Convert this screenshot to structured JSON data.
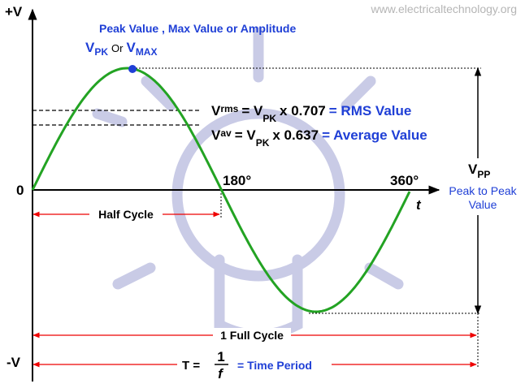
{
  "watermark": "www.electricaltechnology.org",
  "axis": {
    "y_top": "+V",
    "y_bottom": "-V",
    "origin": "0",
    "x": "t"
  },
  "peak": {
    "title": "Peak Value , Max Value or Amplitude",
    "v1": "V",
    "sub1": "PK",
    "or": "Or",
    "v2": "V",
    "sub2": "MAX"
  },
  "rms": {
    "v": "V",
    "sub": "rms",
    "eq": "= V",
    "sub2": "PK",
    "coef": "x 0.707",
    "label": "= RMS Value"
  },
  "average": {
    "v": "V",
    "sub": "av",
    "eq": "= V",
    "sub2": "PK",
    "coef": "x 0.637",
    "label": "= Average Value"
  },
  "degrees": {
    "half": "180°",
    "full": "360°"
  },
  "peak_to_peak": {
    "v": "V",
    "sub": "PP",
    "line1": "Peak to Peak",
    "line2": "Value"
  },
  "half_cycle": "Half Cycle",
  "full_cycle": "1 Full Cycle",
  "period": {
    "lhs": "T =",
    "numerator": "1",
    "denominator": "f",
    "label": "= Time Period"
  }
}
